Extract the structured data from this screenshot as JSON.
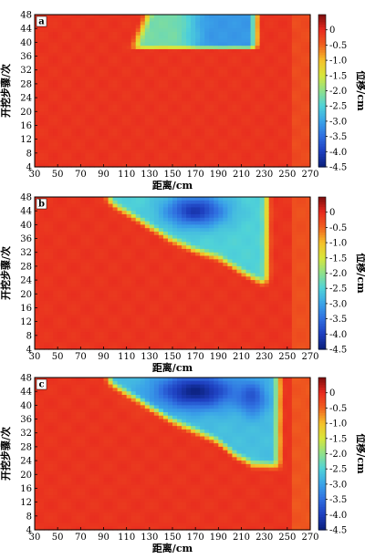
{
  "chart_data": [
    {
      "type": "heatmap",
      "panel_label": "a",
      "xlabel": "距离/cm",
      "ylabel": "开挖步骤/次",
      "x_ticks": [
        "30",
        "50",
        "70",
        "90",
        "110",
        "130",
        "150",
        "170",
        "190",
        "210",
        "230",
        "250",
        "270"
      ],
      "y_ticks": [
        "4",
        "8",
        "12",
        "16",
        "20",
        "24",
        "28",
        "32",
        "36",
        "40",
        "44",
        "48"
      ],
      "xlim": [
        30,
        270
      ],
      "ylim": [
        4,
        48
      ],
      "colorbar": {
        "label": "位移/cm",
        "ticks": [
          "0",
          "-0.5",
          "-1.0",
          "-1.5",
          "-2.0",
          "-2.5",
          "-3.0",
          "-3.5",
          "-4.0",
          "-4.5"
        ],
        "range": [
          -4.5,
          0.5
        ]
      },
      "colormap": [
        "#0a1f7a",
        "#1e3fbf",
        "#2f6fe0",
        "#3aa3e8",
        "#4fd2d8",
        "#8fe08a",
        "#d8e63a",
        "#f5c02a",
        "#f0601f",
        "#e8291f",
        "#7a0e0e"
      ]
    },
    {
      "type": "heatmap",
      "panel_label": "b",
      "xlabel": "距离/cm",
      "ylabel": "开挖步骤/次",
      "x_ticks": [
        "30",
        "50",
        "70",
        "90",
        "110",
        "130",
        "150",
        "170",
        "190",
        "210",
        "230",
        "250",
        "270"
      ],
      "y_ticks": [
        "4",
        "8",
        "12",
        "16",
        "20",
        "24",
        "28",
        "32",
        "36",
        "40",
        "44",
        "48"
      ],
      "xlim": [
        30,
        270
      ],
      "ylim": [
        4,
        48
      ],
      "colorbar": {
        "label": "位移/cm",
        "ticks": [
          "0",
          "-0.5",
          "-1.0",
          "-1.5",
          "-2.0",
          "-2.5",
          "-3.0",
          "-3.5",
          "-4.0",
          "-4.5"
        ],
        "range": [
          -4.5,
          0.5
        ]
      },
      "colormap": [
        "#0a1f7a",
        "#1e3fbf",
        "#2f6fe0",
        "#3aa3e8",
        "#4fd2d8",
        "#8fe08a",
        "#d8e63a",
        "#f5c02a",
        "#f0601f",
        "#e8291f",
        "#7a0e0e"
      ]
    },
    {
      "type": "heatmap",
      "panel_label": "c",
      "xlabel": "距离/cm",
      "ylabel": "开挖步骤/次",
      "x_ticks": [
        "30",
        "50",
        "70",
        "90",
        "110",
        "130",
        "150",
        "170",
        "190",
        "210",
        "230",
        "250",
        "270"
      ],
      "y_ticks": [
        "4",
        "8",
        "12",
        "16",
        "20",
        "24",
        "28",
        "32",
        "36",
        "40",
        "44",
        "48"
      ],
      "xlim": [
        30,
        270
      ],
      "ylim": [
        4,
        48
      ],
      "colorbar": {
        "label": "位移/cm",
        "ticks": [
          "0",
          "-0.5",
          "-1.0",
          "-1.5",
          "-2.0",
          "-2.5",
          "-3.0",
          "-3.5",
          "-4.0",
          "-4.5"
        ],
        "range": [
          -4.5,
          0.5
        ]
      },
      "colormap": [
        "#0a1f7a",
        "#1e3fbf",
        "#2f6fe0",
        "#3aa3e8",
        "#4fd2d8",
        "#8fe08a",
        "#d8e63a",
        "#f5c02a",
        "#f0601f",
        "#e8291f",
        "#7a0e0e"
      ]
    }
  ]
}
